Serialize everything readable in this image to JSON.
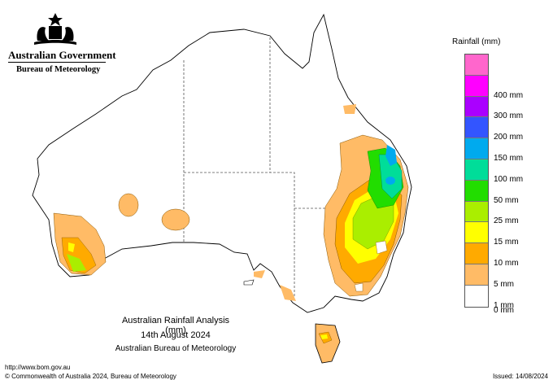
{
  "header": {
    "gov_title": "Australian Government",
    "bom_title": "Bureau of Meteorology"
  },
  "map": {
    "title": "Australian Rainfall Analysis (mm)",
    "date": "14th August 2024",
    "organisation": "Australian Bureau of Meteorology"
  },
  "legend": {
    "title": "Rainfall (mm)",
    "items": [
      {
        "label": "",
        "color": "#ff66cc"
      },
      {
        "label": "400 mm",
        "color": "#ff00ff"
      },
      {
        "label": "300 mm",
        "color": "#aa00ff"
      },
      {
        "label": "200 mm",
        "color": "#3355ff"
      },
      {
        "label": "150 mm",
        "color": "#00aaee"
      },
      {
        "label": "100 mm",
        "color": "#00dd99"
      },
      {
        "label": "50 mm",
        "color": "#22dd00"
      },
      {
        "label": "25 mm",
        "color": "#aaee00"
      },
      {
        "label": "15 mm",
        "color": "#ffff00"
      },
      {
        "label": "10 mm",
        "color": "#ffaa00"
      },
      {
        "label": "5 mm",
        "color": "#ffbb66"
      },
      {
        "label": "1 mm",
        "color": "#ffffff"
      }
    ],
    "bottom_label": "0 mm"
  },
  "footer": {
    "url": "http://www.bom.gov.au",
    "copyright": "© Commonwealth of Australia 2024, Bureau of Meteorology",
    "issued": "Issued: 14/08/2024"
  }
}
